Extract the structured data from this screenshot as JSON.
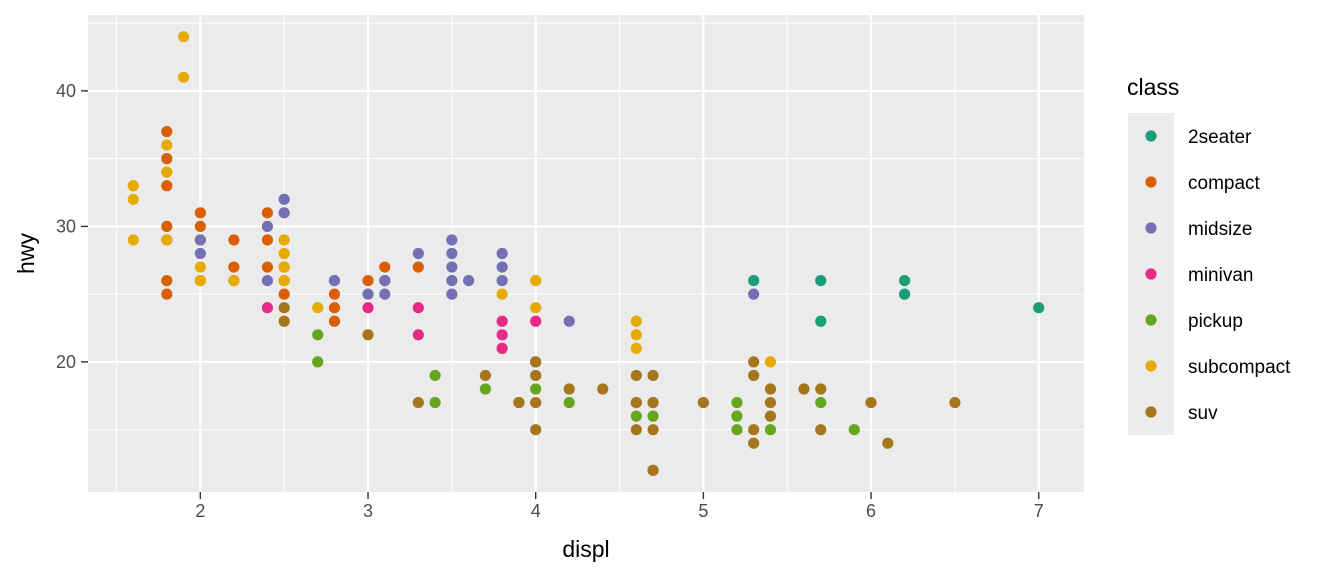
{
  "chart_data": {
    "type": "scatter",
    "xlabel": "displ",
    "ylabel": "hwy",
    "xlim": [
      1.33,
      7.27
    ],
    "ylim": [
      10.4,
      45.6
    ],
    "x_ticks": [
      2,
      3,
      4,
      5,
      6,
      7
    ],
    "y_ticks": [
      20,
      30,
      40
    ],
    "grid": true,
    "legend": {
      "title": "class",
      "position": "right",
      "entries": [
        "2seater",
        "compact",
        "midsize",
        "minivan",
        "pickup",
        "subcompact",
        "suv"
      ]
    },
    "colors": {
      "2seater": "#1B9E77",
      "compact": "#D95F02",
      "midsize": "#7570B3",
      "minivan": "#E7298A",
      "pickup": "#66A61E",
      "subcompact": "#E6AB02",
      "suv": "#A6761D"
    },
    "series": [
      {
        "name": "2seater",
        "points": [
          [
            5.3,
            26
          ],
          [
            5.7,
            26
          ],
          [
            5.7,
            23
          ],
          [
            6.2,
            26
          ],
          [
            6.2,
            25
          ],
          [
            7.0,
            24
          ]
        ]
      },
      {
        "name": "compact",
        "points": [
          [
            1.8,
            37
          ],
          [
            1.8,
            35
          ],
          [
            1.8,
            33
          ],
          [
            1.8,
            30
          ],
          [
            1.8,
            26
          ],
          [
            1.8,
            25
          ],
          [
            2.0,
            31
          ],
          [
            2.0,
            30
          ],
          [
            2.0,
            29
          ],
          [
            2.0,
            26
          ],
          [
            2.2,
            29
          ],
          [
            2.2,
            27
          ],
          [
            2.2,
            26
          ],
          [
            2.4,
            31
          ],
          [
            2.4,
            29
          ],
          [
            2.4,
            27
          ],
          [
            2.5,
            27
          ],
          [
            2.5,
            26
          ],
          [
            2.5,
            25
          ],
          [
            2.8,
            25
          ],
          [
            2.8,
            24
          ],
          [
            2.8,
            23
          ],
          [
            3.0,
            26
          ],
          [
            3.1,
            27
          ],
          [
            3.1,
            26
          ],
          [
            3.3,
            27
          ]
        ]
      },
      {
        "name": "midsize",
        "points": [
          [
            1.8,
            29
          ],
          [
            2.0,
            29
          ],
          [
            2.0,
            28
          ],
          [
            2.4,
            30
          ],
          [
            2.4,
            26
          ],
          [
            2.5,
            32
          ],
          [
            2.5,
            31
          ],
          [
            2.8,
            26
          ],
          [
            3.0,
            25
          ],
          [
            3.1,
            26
          ],
          [
            3.1,
            25
          ],
          [
            3.3,
            28
          ],
          [
            3.5,
            29
          ],
          [
            3.5,
            28
          ],
          [
            3.5,
            27
          ],
          [
            3.5,
            26
          ],
          [
            3.5,
            25
          ],
          [
            3.6,
            26
          ],
          [
            3.8,
            28
          ],
          [
            3.8,
            27
          ],
          [
            3.8,
            26
          ],
          [
            4.2,
            23
          ],
          [
            5.3,
            25
          ]
        ]
      },
      {
        "name": "minivan",
        "points": [
          [
            2.4,
            24
          ],
          [
            3.0,
            24
          ],
          [
            3.3,
            24
          ],
          [
            3.3,
            22
          ],
          [
            3.8,
            23
          ],
          [
            3.8,
            22
          ],
          [
            3.8,
            21
          ],
          [
            4.0,
            23
          ]
        ]
      },
      {
        "name": "pickup",
        "points": [
          [
            2.7,
            22
          ],
          [
            2.7,
            20
          ],
          [
            3.4,
            19
          ],
          [
            3.4,
            17
          ],
          [
            3.7,
            18
          ],
          [
            3.9,
            17
          ],
          [
            4.0,
            20
          ],
          [
            4.0,
            18
          ],
          [
            4.2,
            17
          ],
          [
            4.6,
            17
          ],
          [
            4.6,
            16
          ],
          [
            4.7,
            17
          ],
          [
            4.7,
            16
          ],
          [
            4.7,
            12
          ],
          [
            5.2,
            17
          ],
          [
            5.2,
            16
          ],
          [
            5.2,
            15
          ],
          [
            5.4,
            15
          ],
          [
            5.7,
            17
          ],
          [
            5.9,
            15
          ]
        ]
      },
      {
        "name": "subcompact",
        "points": [
          [
            1.6,
            33
          ],
          [
            1.6,
            32
          ],
          [
            1.6,
            29
          ],
          [
            1.8,
            36
          ],
          [
            1.8,
            34
          ],
          [
            1.8,
            29
          ],
          [
            1.9,
            44
          ],
          [
            1.9,
            41
          ],
          [
            2.0,
            27
          ],
          [
            2.0,
            26
          ],
          [
            2.2,
            26
          ],
          [
            2.5,
            29
          ],
          [
            2.5,
            28
          ],
          [
            2.5,
            27
          ],
          [
            2.5,
            26
          ],
          [
            2.7,
            24
          ],
          [
            3.8,
            25
          ],
          [
            4.0,
            26
          ],
          [
            4.0,
            24
          ],
          [
            4.6,
            23
          ],
          [
            4.6,
            22
          ],
          [
            4.6,
            21
          ],
          [
            5.4,
            20
          ]
        ]
      },
      {
        "name": "suv",
        "points": [
          [
            2.5,
            24
          ],
          [
            2.5,
            23
          ],
          [
            3.0,
            22
          ],
          [
            3.3,
            17
          ],
          [
            3.7,
            19
          ],
          [
            3.9,
            17
          ],
          [
            4.0,
            20
          ],
          [
            4.0,
            19
          ],
          [
            4.0,
            17
          ],
          [
            4.0,
            15
          ],
          [
            4.2,
            18
          ],
          [
            4.4,
            18
          ],
          [
            4.6,
            19
          ],
          [
            4.6,
            17
          ],
          [
            4.6,
            15
          ],
          [
            4.7,
            19
          ],
          [
            4.7,
            17
          ],
          [
            4.7,
            15
          ],
          [
            4.7,
            12
          ],
          [
            5.0,
            17
          ],
          [
            5.3,
            20
          ],
          [
            5.3,
            19
          ],
          [
            5.3,
            15
          ],
          [
            5.3,
            14
          ],
          [
            5.4,
            18
          ],
          [
            5.4,
            17
          ],
          [
            5.4,
            16
          ],
          [
            5.6,
            18
          ],
          [
            5.7,
            18
          ],
          [
            5.7,
            15
          ],
          [
            6.0,
            17
          ],
          [
            6.1,
            14
          ],
          [
            6.5,
            17
          ]
        ]
      }
    ]
  }
}
